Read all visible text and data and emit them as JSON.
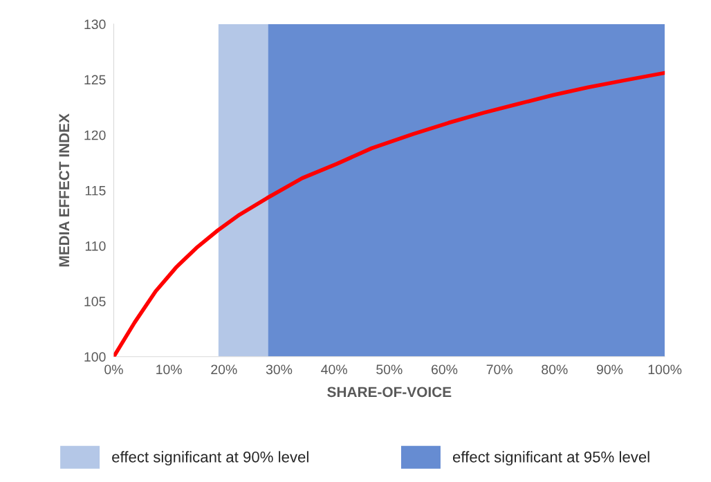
{
  "chart_data": {
    "type": "line",
    "xlabel": "SHARE-OF-VOICE",
    "ylabel": "MEDIA EFFECT INDEX",
    "x": [
      0,
      3.8,
      7.6,
      11.4,
      15.2,
      18.9,
      22.8,
      27.8,
      34.2,
      40.5,
      46.8,
      54.4,
      60.8,
      67.1,
      73.4,
      79.7,
      86.1,
      92.4,
      100
    ],
    "series": [
      {
        "color": "#ff0000",
        "values": [
          100,
          103.1,
          105.9,
          108.1,
          109.9,
          111.4,
          112.8,
          114.3,
          116.1,
          117.4,
          118.8,
          120.1,
          121.1,
          122,
          122.8,
          123.6,
          124.3,
          124.9,
          125.6
        ]
      }
    ],
    "xlim": [
      0,
      100
    ],
    "xticks": [
      {
        "value": 0,
        "label": "0%"
      },
      {
        "value": 10,
        "label": "10%"
      },
      {
        "value": 20,
        "label": "20%"
      },
      {
        "value": 30,
        "label": "30%"
      },
      {
        "value": 40,
        "label": "40%"
      },
      {
        "value": 50,
        "label": "50%"
      },
      {
        "value": 60,
        "label": "60%"
      },
      {
        "value": 70,
        "label": "70%"
      },
      {
        "value": 80,
        "label": "80%"
      },
      {
        "value": 90,
        "label": "90%"
      },
      {
        "value": 100,
        "label": "100%"
      }
    ],
    "ylim": [
      100,
      130
    ],
    "yticks": [
      100,
      105,
      110,
      115,
      120,
      125,
      130
    ],
    "bands": [
      {
        "axis": "x",
        "from": 19,
        "to": 28,
        "label": "effect significant at 90% level",
        "color": "#b4c7e7"
      },
      {
        "axis": "x",
        "from": 28,
        "to": 100,
        "label": "effect significant at 95% level",
        "color": "#668cd2"
      }
    ],
    "grid": false,
    "legend": "bottom",
    "marker": "none",
    "line_style": "solid"
  }
}
